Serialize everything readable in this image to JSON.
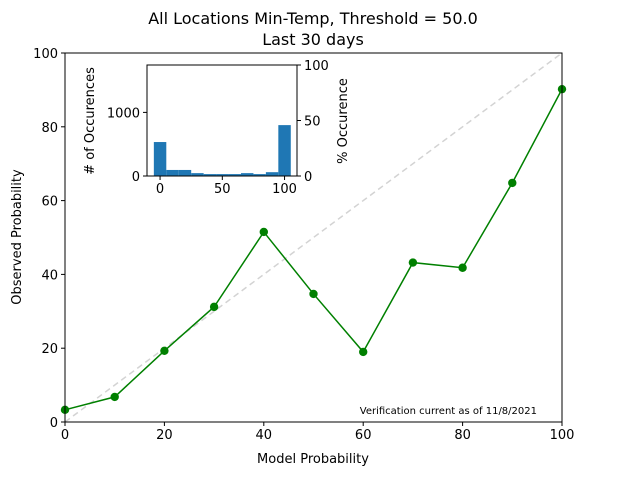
{
  "chart_data": [
    {
      "type": "line",
      "title": "All Locations Min-Temp, Threshold = 50.0",
      "subtitle": "Last 30 days",
      "xlabel": "Model Probability",
      "ylabel": "Observed Probability",
      "xlim": [
        0,
        100
      ],
      "ylim": [
        0,
        100
      ],
      "xticks": [
        0,
        20,
        40,
        60,
        80,
        100
      ],
      "yticks": [
        0,
        20,
        40,
        60,
        80,
        100
      ],
      "grid": false,
      "annotation": "Verification current as of 11/8/2021",
      "reference_line": {
        "x": [
          0,
          100
        ],
        "y": [
          0,
          100
        ],
        "color": "#d3d3d3",
        "style": "dashed"
      },
      "series": [
        {
          "color": "#008000",
          "x": [
            0,
            10,
            20,
            30,
            40,
            50,
            60,
            70,
            80,
            90,
            100
          ],
          "y": [
            3.3,
            6.8,
            19.3,
            31.2,
            51.5,
            34.7,
            19.0,
            43.2,
            41.8,
            64.8,
            90.2
          ]
        }
      ]
    },
    {
      "type": "bar",
      "xlabel": "",
      "ylabel": "# of Occurences",
      "ylabel_right": "% Occurence",
      "xlim": [
        -10.5,
        110
      ],
      "ylim": [
        0,
        1745
      ],
      "ylim_right": [
        0,
        100
      ],
      "xticks": [
        0,
        50,
        100
      ],
      "yticks": [
        0,
        1000
      ],
      "yticks_right": [
        0,
        50,
        100
      ],
      "color": "#1f77b4",
      "bin_width": 10,
      "categories": [
        0,
        10,
        20,
        30,
        40,
        50,
        60,
        70,
        80,
        90,
        100
      ],
      "values": [
        534,
        95,
        95,
        45,
        30,
        30,
        30,
        45,
        30,
        60,
        800
      ]
    }
  ]
}
